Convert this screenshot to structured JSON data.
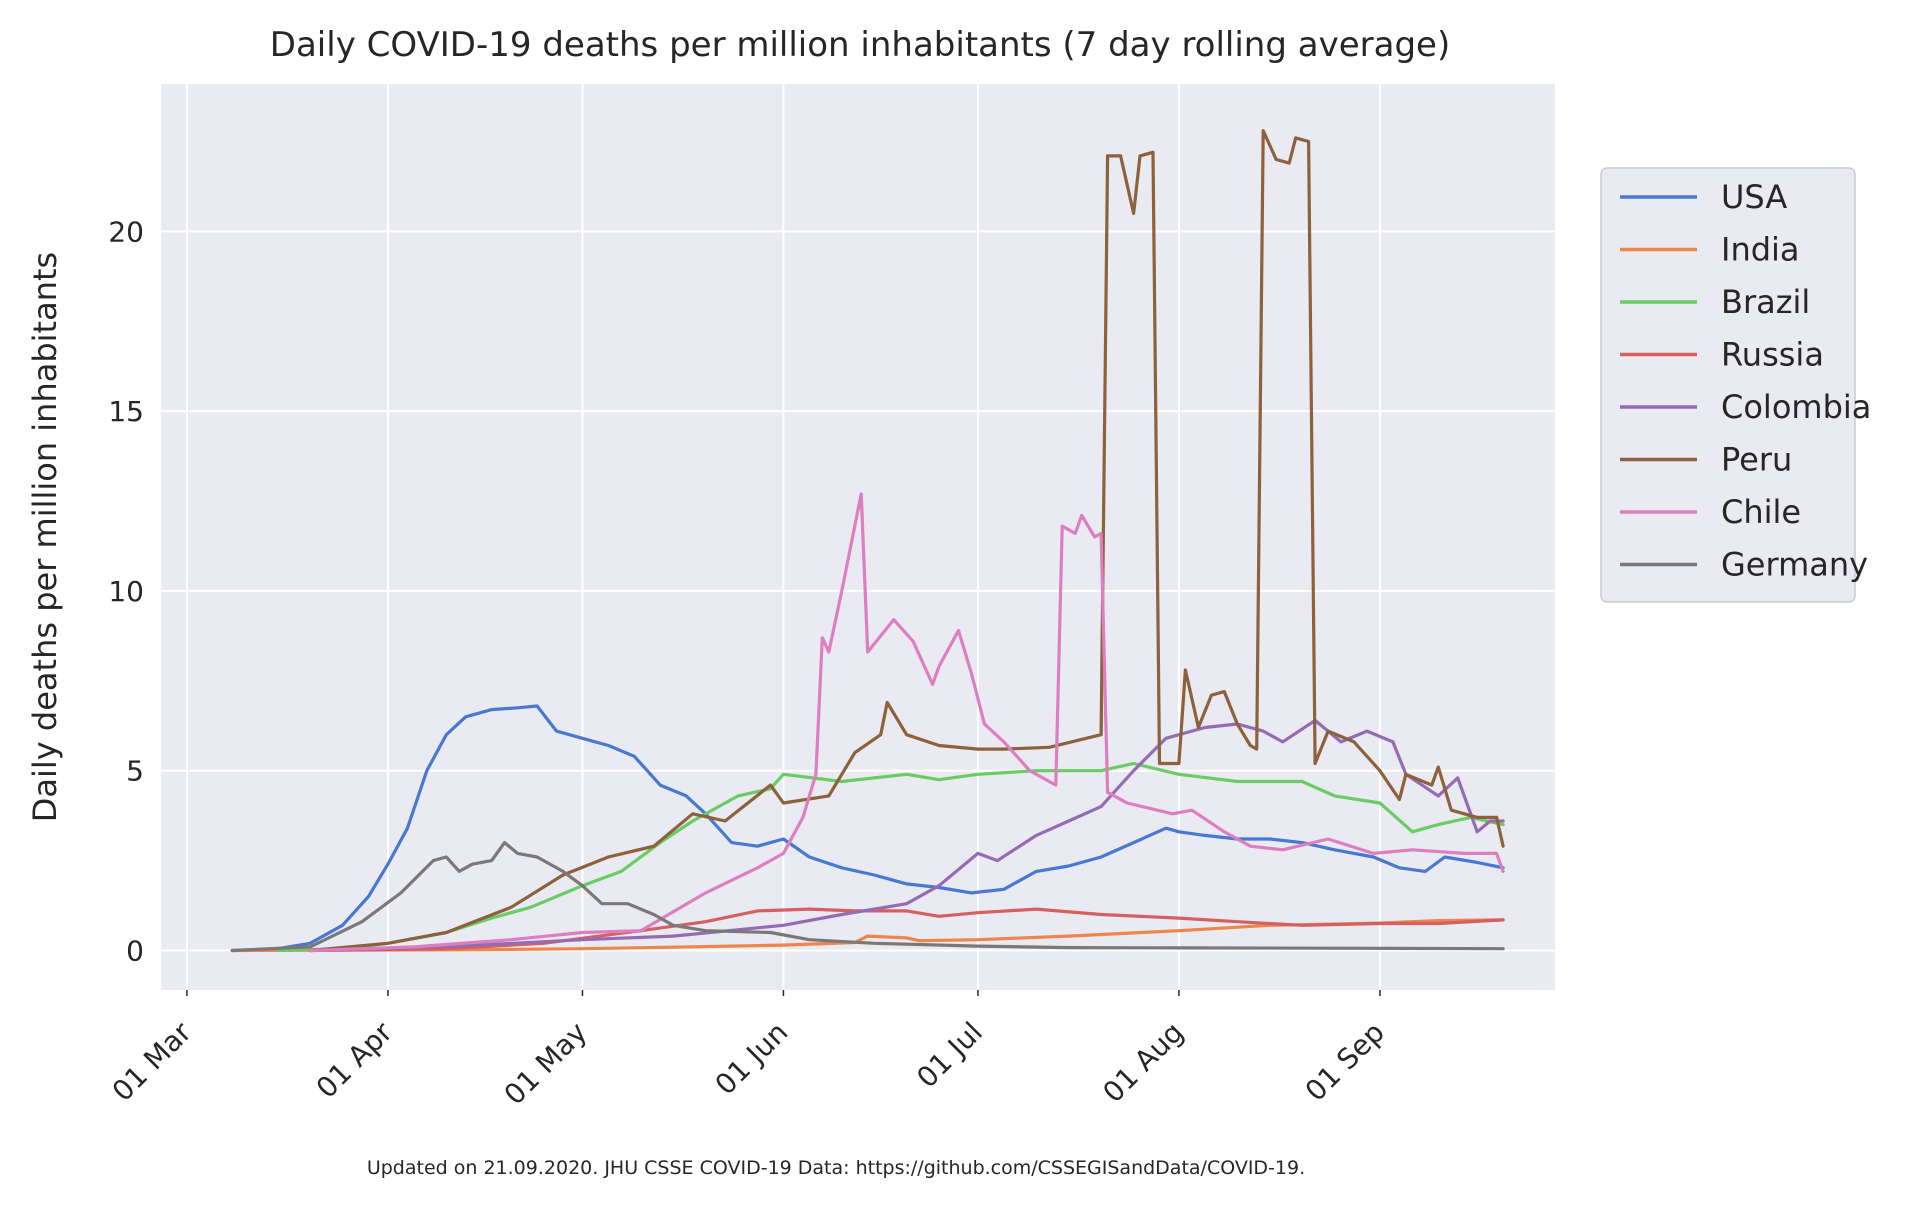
{
  "chart_data": {
    "type": "line",
    "title": "Daily COVID-19 deaths per million inhabitants (7 day rolling average)",
    "ylabel": "Daily deaths per million inhabitants",
    "xlabel": "",
    "xlim": [
      "2020-02-26",
      "2020-09-28"
    ],
    "ylim": [
      -1.1,
      24.1
    ],
    "x_ticks": [
      {
        "date": "2020-03-01",
        "label": "01 Mar"
      },
      {
        "date": "2020-04-01",
        "label": "01 Apr"
      },
      {
        "date": "2020-05-01",
        "label": "01 May"
      },
      {
        "date": "2020-06-01",
        "label": "01 Jun"
      },
      {
        "date": "2020-07-01",
        "label": "01 Jul"
      },
      {
        "date": "2020-08-01",
        "label": "01 Aug"
      },
      {
        "date": "2020-09-01",
        "label": "01 Sep"
      }
    ],
    "y_ticks": [
      0,
      5,
      10,
      15,
      20
    ],
    "grid": true,
    "legend_position": "right",
    "footnote": "Updated on 21.09.2020. JHU CSSE COVID-19 Data: https://github.com/CSSEGISandData/COVID-19.",
    "series": [
      {
        "name": "USA",
        "color": "#4878d0",
        "points": [
          [
            "2020-03-08",
            0
          ],
          [
            "2020-03-15",
            0.05
          ],
          [
            "2020-03-20",
            0.2
          ],
          [
            "2020-03-25",
            0.7
          ],
          [
            "2020-03-29",
            1.5
          ],
          [
            "2020-04-01",
            2.4
          ],
          [
            "2020-04-04",
            3.4
          ],
          [
            "2020-04-07",
            5.0
          ],
          [
            "2020-04-10",
            6.0
          ],
          [
            "2020-04-13",
            6.5
          ],
          [
            "2020-04-17",
            6.7
          ],
          [
            "2020-04-21",
            6.75
          ],
          [
            "2020-04-24",
            6.8
          ],
          [
            "2020-04-27",
            6.1
          ],
          [
            "2020-05-01",
            5.9
          ],
          [
            "2020-05-05",
            5.7
          ],
          [
            "2020-05-09",
            5.4
          ],
          [
            "2020-05-13",
            4.6
          ],
          [
            "2020-05-17",
            4.3
          ],
          [
            "2020-05-20",
            3.8
          ],
          [
            "2020-05-24",
            3.0
          ],
          [
            "2020-05-28",
            2.9
          ],
          [
            "2020-06-01",
            3.1
          ],
          [
            "2020-06-05",
            2.6
          ],
          [
            "2020-06-10",
            2.3
          ],
          [
            "2020-06-15",
            2.1
          ],
          [
            "2020-06-20",
            1.85
          ],
          [
            "2020-06-25",
            1.75
          ],
          [
            "2020-06-30",
            1.6
          ],
          [
            "2020-07-05",
            1.7
          ],
          [
            "2020-07-10",
            2.2
          ],
          [
            "2020-07-15",
            2.35
          ],
          [
            "2020-07-20",
            2.6
          ],
          [
            "2020-07-25",
            3.0
          ],
          [
            "2020-07-30",
            3.4
          ],
          [
            "2020-08-01",
            3.3
          ],
          [
            "2020-08-05",
            3.2
          ],
          [
            "2020-08-10",
            3.1
          ],
          [
            "2020-08-15",
            3.1
          ],
          [
            "2020-08-20",
            3.0
          ],
          [
            "2020-08-25",
            2.8
          ],
          [
            "2020-08-31",
            2.6
          ],
          [
            "2020-09-04",
            2.3
          ],
          [
            "2020-09-08",
            2.2
          ],
          [
            "2020-09-11",
            2.6
          ],
          [
            "2020-09-16",
            2.45
          ],
          [
            "2020-09-20",
            2.3
          ]
        ]
      },
      {
        "name": "India",
        "color": "#ee854a",
        "points": [
          [
            "2020-03-08",
            0
          ],
          [
            "2020-04-15",
            0.02
          ],
          [
            "2020-05-01",
            0.05
          ],
          [
            "2020-05-15",
            0.09
          ],
          [
            "2020-06-01",
            0.15
          ],
          [
            "2020-06-12",
            0.22
          ],
          [
            "2020-06-14",
            0.4
          ],
          [
            "2020-06-20",
            0.35
          ],
          [
            "2020-06-22",
            0.27
          ],
          [
            "2020-07-01",
            0.3
          ],
          [
            "2020-07-15",
            0.4
          ],
          [
            "2020-08-01",
            0.55
          ],
          [
            "2020-08-15",
            0.7
          ],
          [
            "2020-09-01",
            0.76
          ],
          [
            "2020-09-10",
            0.83
          ],
          [
            "2020-09-20",
            0.85
          ]
        ]
      },
      {
        "name": "Brazil",
        "color": "#6acc64",
        "points": [
          [
            "2020-03-15",
            0
          ],
          [
            "2020-03-25",
            0.05
          ],
          [
            "2020-04-01",
            0.2
          ],
          [
            "2020-04-10",
            0.5
          ],
          [
            "2020-04-17",
            0.9
          ],
          [
            "2020-04-23",
            1.2
          ],
          [
            "2020-05-01",
            1.8
          ],
          [
            "2020-05-07",
            2.2
          ],
          [
            "2020-05-13",
            3.0
          ],
          [
            "2020-05-18",
            3.6
          ],
          [
            "2020-05-25",
            4.3
          ],
          [
            "2020-05-30",
            4.5
          ],
          [
            "2020-06-01",
            4.9
          ],
          [
            "2020-06-10",
            4.7
          ],
          [
            "2020-06-20",
            4.9
          ],
          [
            "2020-06-25",
            4.75
          ],
          [
            "2020-07-01",
            4.9
          ],
          [
            "2020-07-10",
            5.0
          ],
          [
            "2020-07-20",
            5.0
          ],
          [
            "2020-07-25",
            5.2
          ],
          [
            "2020-08-01",
            4.9
          ],
          [
            "2020-08-10",
            4.7
          ],
          [
            "2020-08-20",
            4.7
          ],
          [
            "2020-08-25",
            4.3
          ],
          [
            "2020-09-01",
            4.1
          ],
          [
            "2020-09-06",
            3.3
          ],
          [
            "2020-09-10",
            3.5
          ],
          [
            "2020-09-15",
            3.7
          ],
          [
            "2020-09-20",
            3.5
          ]
        ]
      },
      {
        "name": "Russia",
        "color": "#d65f5f",
        "points": [
          [
            "2020-03-20",
            0
          ],
          [
            "2020-04-10",
            0.05
          ],
          [
            "2020-04-25",
            0.2
          ],
          [
            "2020-05-10",
            0.55
          ],
          [
            "2020-05-20",
            0.8
          ],
          [
            "2020-05-28",
            1.1
          ],
          [
            "2020-06-05",
            1.15
          ],
          [
            "2020-06-12",
            1.1
          ],
          [
            "2020-06-20",
            1.1
          ],
          [
            "2020-06-25",
            0.95
          ],
          [
            "2020-07-01",
            1.05
          ],
          [
            "2020-07-10",
            1.15
          ],
          [
            "2020-07-20",
            1.0
          ],
          [
            "2020-08-01",
            0.9
          ],
          [
            "2020-08-10",
            0.8
          ],
          [
            "2020-08-20",
            0.7
          ],
          [
            "2020-09-01",
            0.75
          ],
          [
            "2020-09-10",
            0.75
          ],
          [
            "2020-09-20",
            0.85
          ]
        ]
      },
      {
        "name": "Colombia",
        "color": "#956cb4",
        "points": [
          [
            "2020-03-20",
            0
          ],
          [
            "2020-04-01",
            0.05
          ],
          [
            "2020-04-15",
            0.15
          ],
          [
            "2020-05-01",
            0.3
          ],
          [
            "2020-05-15",
            0.4
          ],
          [
            "2020-06-01",
            0.7
          ],
          [
            "2020-06-10",
            1.0
          ],
          [
            "2020-06-20",
            1.3
          ],
          [
            "2020-06-25",
            1.8
          ],
          [
            "2020-07-01",
            2.7
          ],
          [
            "2020-07-04",
            2.5
          ],
          [
            "2020-07-10",
            3.2
          ],
          [
            "2020-07-15",
            3.6
          ],
          [
            "2020-07-20",
            4.0
          ],
          [
            "2020-07-25",
            5.0
          ],
          [
            "2020-07-30",
            5.9
          ],
          [
            "2020-08-05",
            6.2
          ],
          [
            "2020-08-10",
            6.3
          ],
          [
            "2020-08-14",
            6.1
          ],
          [
            "2020-08-17",
            5.8
          ],
          [
            "2020-08-22",
            6.4
          ],
          [
            "2020-08-26",
            5.8
          ],
          [
            "2020-08-30",
            6.1
          ],
          [
            "2020-09-03",
            5.8
          ],
          [
            "2020-09-05",
            4.9
          ],
          [
            "2020-09-10",
            4.3
          ],
          [
            "2020-09-13",
            4.8
          ],
          [
            "2020-09-16",
            3.3
          ],
          [
            "2020-09-18",
            3.6
          ],
          [
            "2020-09-20",
            3.6
          ]
        ]
      },
      {
        "name": "Peru",
        "color": "#8c613c",
        "points": [
          [
            "2020-03-20",
            0
          ],
          [
            "2020-04-01",
            0.2
          ],
          [
            "2020-04-10",
            0.5
          ],
          [
            "2020-04-20",
            1.2
          ],
          [
            "2020-04-28",
            2.1
          ],
          [
            "2020-05-05",
            2.6
          ],
          [
            "2020-05-12",
            2.9
          ],
          [
            "2020-05-18",
            3.8
          ],
          [
            "2020-05-23",
            3.6
          ],
          [
            "2020-05-30",
            4.6
          ],
          [
            "2020-06-01",
            4.1
          ],
          [
            "2020-06-08",
            4.3
          ],
          [
            "2020-06-12",
            5.5
          ],
          [
            "2020-06-16",
            6.0
          ],
          [
            "2020-06-17",
            6.9
          ],
          [
            "2020-06-20",
            6.0
          ],
          [
            "2020-06-25",
            5.7
          ],
          [
            "2020-07-01",
            5.6
          ],
          [
            "2020-07-05",
            5.6
          ],
          [
            "2020-07-12",
            5.65
          ],
          [
            "2020-07-20",
            6.0
          ],
          [
            "2020-07-21",
            22.1
          ],
          [
            "2020-07-23",
            22.1
          ],
          [
            "2020-07-25",
            20.5
          ],
          [
            "2020-07-26",
            22.1
          ],
          [
            "2020-07-28",
            22.2
          ],
          [
            "2020-07-29",
            5.2
          ],
          [
            "2020-08-01",
            5.2
          ],
          [
            "2020-08-02",
            7.8
          ],
          [
            "2020-08-04",
            6.2
          ],
          [
            "2020-08-06",
            7.1
          ],
          [
            "2020-08-08",
            7.2
          ],
          [
            "2020-08-10",
            6.3
          ],
          [
            "2020-08-12",
            5.7
          ],
          [
            "2020-08-13",
            5.6
          ],
          [
            "2020-08-14",
            22.8
          ],
          [
            "2020-08-16",
            22.0
          ],
          [
            "2020-08-18",
            21.9
          ],
          [
            "2020-08-19",
            22.6
          ],
          [
            "2020-08-21",
            22.5
          ],
          [
            "2020-08-22",
            5.2
          ],
          [
            "2020-08-24",
            6.1
          ],
          [
            "2020-08-28",
            5.8
          ],
          [
            "2020-09-01",
            5.0
          ],
          [
            "2020-09-04",
            4.2
          ],
          [
            "2020-09-05",
            4.9
          ],
          [
            "2020-09-09",
            4.6
          ],
          [
            "2020-09-10",
            5.1
          ],
          [
            "2020-09-12",
            3.9
          ],
          [
            "2020-09-16",
            3.7
          ],
          [
            "2020-09-19",
            3.7
          ],
          [
            "2020-09-20",
            2.9
          ]
        ]
      },
      {
        "name": "Chile",
        "color": "#dc7ec0",
        "points": [
          [
            "2020-03-20",
            0
          ],
          [
            "2020-04-05",
            0.1
          ],
          [
            "2020-04-20",
            0.3
          ],
          [
            "2020-05-01",
            0.5
          ],
          [
            "2020-05-10",
            0.55
          ],
          [
            "2020-05-20",
            1.6
          ],
          [
            "2020-05-28",
            2.3
          ],
          [
            "2020-06-01",
            2.7
          ],
          [
            "2020-06-04",
            3.7
          ],
          [
            "2020-06-06",
            4.9
          ],
          [
            "2020-06-07",
            8.7
          ],
          [
            "2020-06-08",
            8.3
          ],
          [
            "2020-06-10",
            10.0
          ],
          [
            "2020-06-13",
            12.7
          ],
          [
            "2020-06-14",
            8.3
          ],
          [
            "2020-06-18",
            9.2
          ],
          [
            "2020-06-21",
            8.6
          ],
          [
            "2020-06-24",
            7.4
          ],
          [
            "2020-06-25",
            7.9
          ],
          [
            "2020-06-28",
            8.9
          ],
          [
            "2020-06-30",
            7.7
          ],
          [
            "2020-07-02",
            6.3
          ],
          [
            "2020-07-05",
            5.8
          ],
          [
            "2020-07-09",
            5.0
          ],
          [
            "2020-07-13",
            4.6
          ],
          [
            "2020-07-14",
            11.8
          ],
          [
            "2020-07-16",
            11.6
          ],
          [
            "2020-07-17",
            12.1
          ],
          [
            "2020-07-19",
            11.5
          ],
          [
            "2020-07-20",
            11.6
          ],
          [
            "2020-07-21",
            4.4
          ],
          [
            "2020-07-24",
            4.1
          ],
          [
            "2020-07-31",
            3.8
          ],
          [
            "2020-08-03",
            3.9
          ],
          [
            "2020-08-08",
            3.3
          ],
          [
            "2020-08-12",
            2.9
          ],
          [
            "2020-08-17",
            2.8
          ],
          [
            "2020-08-24",
            3.1
          ],
          [
            "2020-08-31",
            2.7
          ],
          [
            "2020-09-06",
            2.8
          ],
          [
            "2020-09-14",
            2.7
          ],
          [
            "2020-09-19",
            2.7
          ],
          [
            "2020-09-20",
            2.2
          ]
        ]
      },
      {
        "name": "Germany",
        "color": "#797979",
        "points": [
          [
            "2020-03-08",
            0
          ],
          [
            "2020-03-20",
            0.1
          ],
          [
            "2020-03-28",
            0.8
          ],
          [
            "2020-04-03",
            1.6
          ],
          [
            "2020-04-08",
            2.5
          ],
          [
            "2020-04-10",
            2.6
          ],
          [
            "2020-04-12",
            2.2
          ],
          [
            "2020-04-14",
            2.4
          ],
          [
            "2020-04-17",
            2.5
          ],
          [
            "2020-04-19",
            3.0
          ],
          [
            "2020-04-21",
            2.7
          ],
          [
            "2020-04-24",
            2.6
          ],
          [
            "2020-04-28",
            2.2
          ],
          [
            "2020-05-01",
            1.8
          ],
          [
            "2020-05-04",
            1.3
          ],
          [
            "2020-05-08",
            1.3
          ],
          [
            "2020-05-12",
            1.0
          ],
          [
            "2020-05-15",
            0.7
          ],
          [
            "2020-05-20",
            0.55
          ],
          [
            "2020-05-30",
            0.5
          ],
          [
            "2020-06-05",
            0.3
          ],
          [
            "2020-06-15",
            0.2
          ],
          [
            "2020-07-01",
            0.12
          ],
          [
            "2020-07-15",
            0.08
          ],
          [
            "2020-08-01",
            0.07
          ],
          [
            "2020-09-01",
            0.06
          ],
          [
            "2020-09-20",
            0.05
          ]
        ]
      }
    ]
  }
}
